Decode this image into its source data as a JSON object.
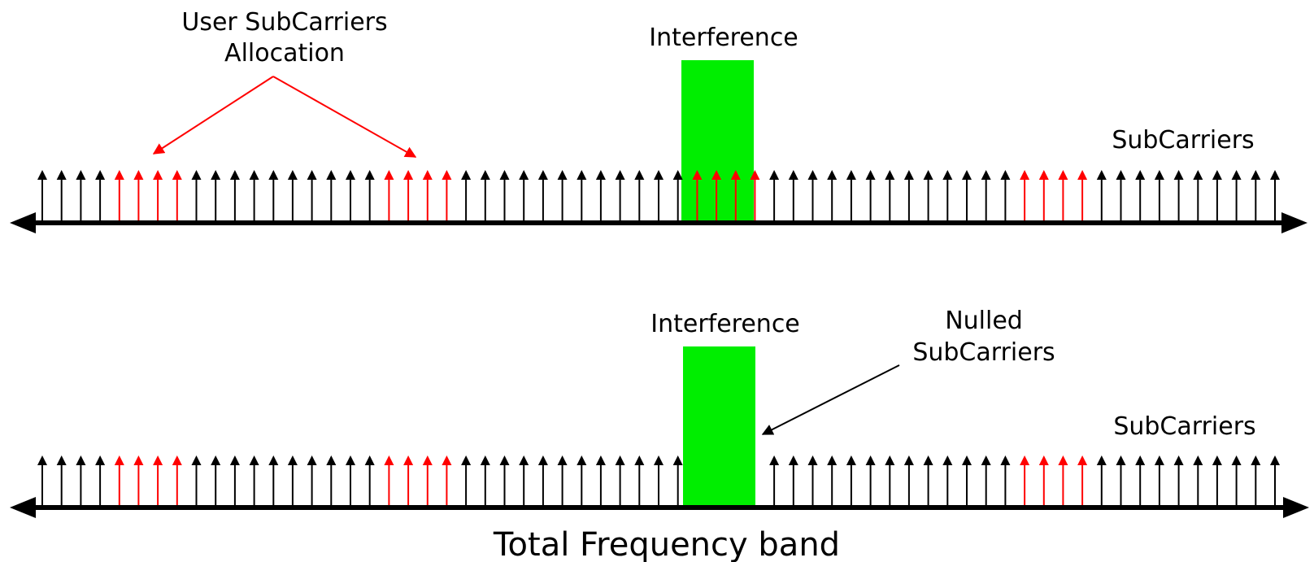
{
  "colors": {
    "default_subcarrier": "#000000",
    "allocated_subcarrier": "#ff0000",
    "interference": "#00ee00",
    "axis": "#000000",
    "callout_top": "#ff0000",
    "callout_bottom": "#000000"
  },
  "top_panel": {
    "allocation_label_line1": "User SubCarriers",
    "allocation_label_line2": "Allocation",
    "interference_label": "Interference",
    "subcarriers_label": "SubCarriers",
    "subcarrier_count": 65,
    "allocated_indices": [
      4,
      5,
      6,
      7,
      18,
      19,
      20,
      21,
      34,
      35,
      36,
      37,
      51,
      52,
      53,
      54
    ],
    "interfered_indices": [
      34,
      35,
      36,
      37
    ],
    "nulled_indices": []
  },
  "bottom_panel": {
    "interference_label": "Interference",
    "nulled_label_line1": "Nulled",
    "nulled_label_line2": "SubCarriers",
    "subcarriers_label": "SubCarriers",
    "subcarrier_count": 65,
    "allocated_indices": [
      4,
      5,
      6,
      7,
      18,
      19,
      20,
      21,
      51,
      52,
      53,
      54
    ],
    "interfered_indices": [],
    "nulled_indices": [
      34,
      35,
      36,
      37
    ]
  },
  "axis_label": "Total Frequency band"
}
